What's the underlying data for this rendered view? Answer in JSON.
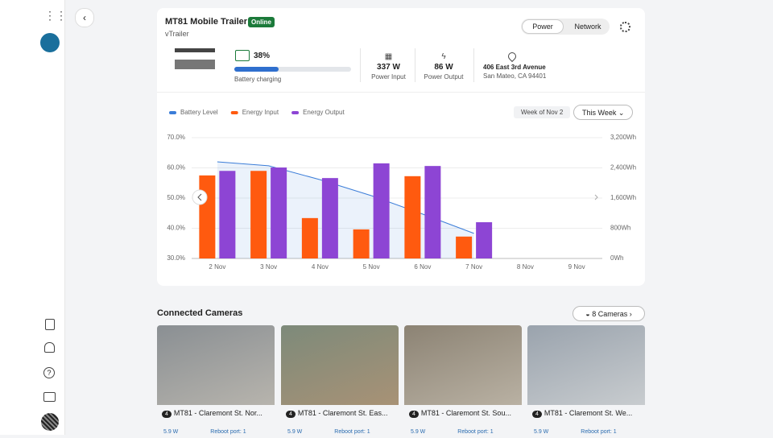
{
  "header": {
    "title": "MT81 Mobile Trailer",
    "status": "Online",
    "subtitle": "vTrailer",
    "tabs": [
      "Power",
      "Network"
    ]
  },
  "stats": {
    "battery": {
      "value": "38%",
      "label": "Battery charging"
    },
    "power_input": {
      "value": "337 W",
      "label": "Power Input"
    },
    "power_output": {
      "value": "86 W",
      "label": "Power Output"
    },
    "address": {
      "line1": "406 East 3rd Avenue",
      "line2": "San Mateo, CA 94401"
    }
  },
  "chart_controls": {
    "week": "Week of Nov 2",
    "range": "This Week"
  },
  "chart_data": {
    "type": "bar",
    "categories": [
      "2 Nov",
      "3 Nov",
      "4 Nov",
      "5 Nov",
      "6 Nov",
      "7 Nov",
      "8 Nov",
      "9 Nov"
    ],
    "series": [
      {
        "name": "Battery Level",
        "type": "line",
        "color": "#3b7dd8",
        "values": [
          62,
          60.7,
          56.1,
          50.8,
          44.7,
          38.3,
          null,
          null
        ]
      },
      {
        "name": "Energy Input",
        "type": "bar",
        "axis": "y2",
        "color": "#ff5a0f",
        "values": [
          2200,
          2320,
          1070,
          770,
          2180,
          580,
          null,
          null
        ]
      },
      {
        "name": "Energy Output",
        "type": "bar",
        "axis": "y2",
        "color": "#8d45d4",
        "values": [
          2320,
          2410,
          2130,
          2520,
          2450,
          960,
          null,
          null
        ]
      }
    ],
    "ylim": [
      30,
      70
    ],
    "yticks": [
      {
        "value": 30,
        "label": "30.0%"
      },
      {
        "value": 40,
        "label": "40.0%"
      },
      {
        "value": 50,
        "label": "50.0%"
      },
      {
        "value": 60,
        "label": "60.0%"
      },
      {
        "value": 70,
        "label": "70.0%"
      }
    ],
    "y2lim": [
      0,
      3200
    ],
    "y2ticks": [
      {
        "value": 0,
        "label": "0Wh"
      },
      {
        "value": 800,
        "label": "800Wh"
      },
      {
        "value": 1600,
        "label": "1,600Wh"
      },
      {
        "value": 2400,
        "label": "2,400Wh"
      },
      {
        "value": 3200,
        "label": "3,200Wh"
      }
    ],
    "grid": true,
    "legend": "top-left"
  },
  "cameras": {
    "title": "Connected Cameras",
    "count": "8 Cameras",
    "items": [
      {
        "badge": "4",
        "name": "MT81 - Claremont St. Nor...",
        "power": "5.9 W",
        "reboot": "Reboot port: 1"
      },
      {
        "badge": "4",
        "name": "MT81 - Claremont St. Eas...",
        "power": "5.9 W",
        "reboot": "Reboot port: 1"
      },
      {
        "badge": "4",
        "name": "MT81 - Claremont St. Sou...",
        "power": "5.9 W",
        "reboot": "Reboot port: 1"
      },
      {
        "badge": "4",
        "name": "MT81 - Claremont St. We...",
        "power": "5.9 W",
        "reboot": "Reboot port: 1"
      }
    ]
  }
}
